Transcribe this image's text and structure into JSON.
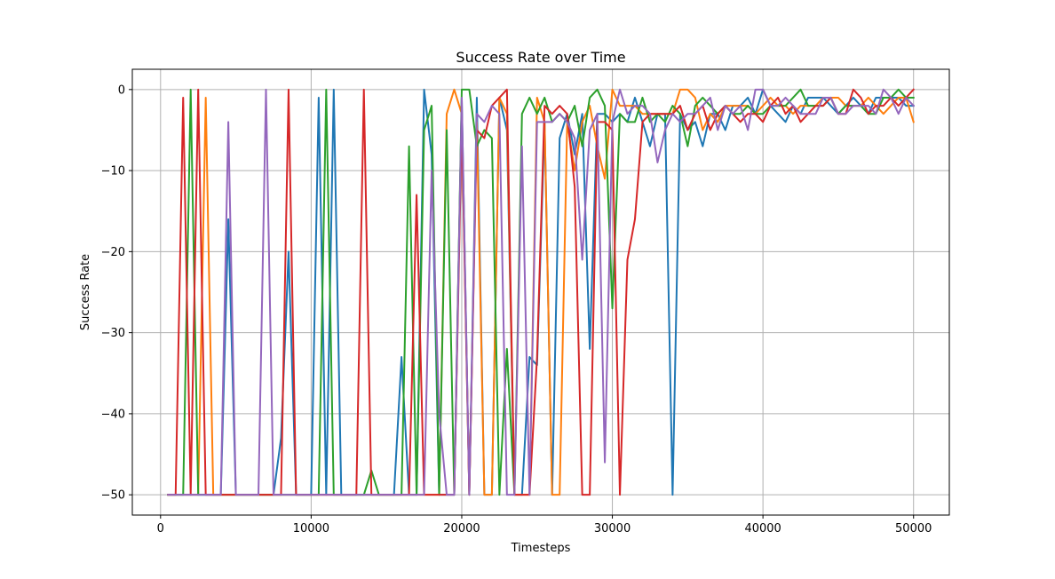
{
  "chart_data": {
    "type": "line",
    "title": "Success Rate over Time",
    "xlabel": "Timesteps",
    "ylabel": "Success Rate",
    "xlim": [
      -1875,
      52375
    ],
    "ylim": [
      -52.5,
      2.5
    ],
    "xticks": [
      0,
      10000,
      20000,
      30000,
      40000,
      50000
    ],
    "xtick_labels": [
      "0",
      "10000",
      "20000",
      "30000",
      "40000",
      "50000"
    ],
    "yticks": [
      -50,
      -40,
      -30,
      -20,
      -10,
      0
    ],
    "ytick_labels": [
      "−50",
      "−40",
      "−30",
      "−20",
      "−10",
      "0"
    ],
    "grid": true,
    "series": [
      {
        "color": "#1f77b4",
        "x": [
          500,
          1500,
          4000,
          4500,
          5000,
          7500,
          8000,
          8500,
          9000,
          10000,
          10500,
          11000,
          11500,
          12000,
          15500,
          16000,
          16500,
          17000,
          17500,
          18000,
          18500,
          19000,
          19500,
          20000,
          20500,
          21000,
          21500,
          22000,
          22500,
          23000,
          23500,
          24000,
          24500,
          25000,
          25500,
          26000,
          26500,
          27000,
          27500,
          28000,
          28500,
          29000,
          29500,
          30000,
          30500,
          31000,
          31500,
          32000,
          32500,
          33000,
          33500,
          34000,
          34500,
          35000,
          35500,
          36000,
          36500,
          37000,
          37500,
          38000,
          38500,
          39000,
          39500,
          40000,
          40500,
          41000,
          41500,
          42000,
          42500,
          43000,
          43500,
          44000,
          44500,
          45000,
          45500,
          46000,
          46500,
          47000,
          47500,
          48000,
          48500,
          49000,
          49500,
          50000
        ],
        "y": [
          -50,
          -50,
          -50,
          -16,
          -50,
          -50,
          -43,
          -20,
          -50,
          -50,
          -1,
          -50,
          0,
          -50,
          -50,
          -33,
          -50,
          -50,
          0,
          -8,
          -50,
          -50,
          -50,
          -1,
          -50,
          -1,
          -50,
          -50,
          -1,
          -5,
          -50,
          -50,
          -33,
          -34,
          -4,
          -50,
          -6,
          -3,
          -8,
          -3,
          -32,
          -3,
          -3,
          -4,
          -3,
          -4,
          -1,
          -4,
          -7,
          -3,
          -3,
          -50,
          -3,
          -5,
          -4,
          -7,
          -3,
          -3,
          -5,
          -2,
          -2,
          -1,
          -3,
          0,
          -2,
          -3,
          -4,
          -2,
          -3,
          -1,
          -1,
          -1,
          -2,
          -3,
          -2,
          -1,
          -2,
          -3,
          -1,
          -1,
          -1,
          -1,
          -2,
          -2
        ]
      },
      {
        "color": "#ff7f0e",
        "x": [
          500,
          2500,
          3000,
          3500,
          15500,
          16500,
          17500,
          18000,
          18500,
          19000,
          19500,
          20000,
          20500,
          21000,
          21500,
          22000,
          22500,
          23000,
          23500,
          24000,
          24500,
          25000,
          25500,
          26000,
          26500,
          27000,
          27500,
          28000,
          28500,
          29000,
          29500,
          30000,
          30500,
          31000,
          31500,
          32000,
          32500,
          33000,
          33500,
          34000,
          34500,
          35000,
          35500,
          36000,
          36500,
          37000,
          37500,
          38000,
          38500,
          39000,
          39500,
          40000,
          40500,
          41000,
          41500,
          42000,
          42500,
          43000,
          43500,
          44000,
          44500,
          45000,
          45500,
          46000,
          46500,
          47000,
          47500,
          48000,
          48500,
          49000,
          49500,
          50000
        ],
        "y": [
          -50,
          -50,
          -1,
          -50,
          -50,
          -50,
          -50,
          -50,
          -50,
          -3,
          0,
          -3,
          -50,
          -4,
          -50,
          -50,
          -1,
          -3,
          -50,
          -50,
          -50,
          -1,
          -4,
          -50,
          -50,
          -4,
          -10,
          -4,
          -2,
          -7,
          -11,
          0,
          -2,
          -2,
          -2,
          -3,
          -3,
          -3,
          -3,
          -3,
          0,
          0,
          -1,
          -5,
          -3,
          -4,
          -2,
          -2,
          -2,
          -2,
          -3,
          -2,
          -1,
          -2,
          -2,
          -3,
          -2,
          -2,
          -2,
          -1,
          -1,
          -1,
          -2,
          -2,
          -2,
          -1,
          -2,
          -3,
          -2,
          -1,
          -1,
          -4
        ]
      },
      {
        "color": "#2ca02c",
        "x": [
          500,
          1500,
          2000,
          2500,
          10500,
          11000,
          11500,
          13500,
          14000,
          14500,
          15500,
          16000,
          16500,
          17000,
          17500,
          18000,
          18500,
          19000,
          19500,
          20000,
          20500,
          21000,
          21500,
          22000,
          22500,
          23000,
          23500,
          24000,
          24500,
          25000,
          25500,
          26000,
          26500,
          27000,
          27500,
          28000,
          28500,
          29000,
          29500,
          30000,
          30500,
          31000,
          31500,
          32000,
          32500,
          33000,
          33500,
          34000,
          34500,
          35000,
          35500,
          36000,
          36500,
          37000,
          37500,
          38000,
          38500,
          39000,
          39500,
          40000,
          40500,
          41000,
          41500,
          42000,
          42500,
          43000,
          43500,
          44000,
          44500,
          45000,
          45500,
          46000,
          46500,
          47000,
          47500,
          48000,
          48500,
          49000,
          49500,
          50000
        ],
        "y": [
          -50,
          -50,
          0,
          -50,
          -50,
          0,
          -50,
          -50,
          -47,
          -50,
          -50,
          -50,
          -7,
          -50,
          -5,
          -2,
          -50,
          -5,
          -50,
          0,
          0,
          -7,
          -5,
          -6,
          -50,
          -32,
          -50,
          -3,
          -1,
          -3,
          -1,
          -4,
          -3,
          -4,
          -2,
          -7,
          -1,
          0,
          -2,
          -27,
          -3,
          -4,
          -4,
          -1,
          -4,
          -3,
          -4,
          -2,
          -3,
          -7,
          -2,
          -1,
          -2,
          -3,
          -2,
          -3,
          -3,
          -2,
          -3,
          -3,
          -2,
          -2,
          -2,
          -1,
          0,
          -2,
          -2,
          -2,
          -1,
          -3,
          -2,
          -2,
          -2,
          -3,
          -3,
          -1,
          -1,
          0,
          -1,
          -1
        ]
      },
      {
        "color": "#d62728",
        "x": [
          500,
          1000,
          1500,
          2000,
          2500,
          3000,
          8000,
          8500,
          9000,
          13000,
          13500,
          14000,
          16500,
          17000,
          17500,
          19500,
          20000,
          20500,
          21000,
          21500,
          22000,
          22500,
          23000,
          23500,
          24000,
          24500,
          25000,
          25500,
          26000,
          26500,
          27000,
          27500,
          28000,
          28500,
          29000,
          29500,
          30000,
          30500,
          31000,
          31500,
          32000,
          32500,
          33000,
          33500,
          34000,
          34500,
          35000,
          35500,
          36000,
          36500,
          37000,
          37500,
          38000,
          38500,
          39000,
          39500,
          40000,
          40500,
          41000,
          41500,
          42000,
          42500,
          43000,
          43500,
          44000,
          44500,
          45000,
          45500,
          46000,
          46500,
          47000,
          47500,
          48000,
          48500,
          49000,
          49500,
          50000
        ],
        "y": [
          -50,
          -50,
          -1,
          -50,
          0,
          -50,
          -50,
          0,
          -50,
          -50,
          0,
          -50,
          -50,
          -13,
          -50,
          -50,
          -4,
          -50,
          -5,
          -6,
          -2,
          -1,
          0,
          -50,
          -50,
          -50,
          -33,
          -2,
          -3,
          -2,
          -3,
          -12,
          -50,
          -50,
          -4,
          -4,
          -5,
          -50,
          -21,
          -16,
          -4,
          -3,
          -3,
          -3,
          -3,
          -2,
          -5,
          -3,
          -2,
          -5,
          -3,
          -2,
          -3,
          -4,
          -3,
          -3,
          -4,
          -2,
          -1,
          -3,
          -2,
          -4,
          -3,
          -2,
          -2,
          -1,
          -3,
          -3,
          0,
          -1,
          -3,
          -2,
          -2,
          -1,
          -2,
          -1,
          0
        ]
      },
      {
        "color": "#9467bd",
        "x": [
          500,
          4000,
          4500,
          5000,
          6500,
          7000,
          7500,
          17500,
          18000,
          18500,
          19000,
          19500,
          20000,
          20500,
          21000,
          21500,
          22000,
          22500,
          23000,
          23500,
          24000,
          24500,
          25000,
          25500,
          26000,
          26500,
          27000,
          27500,
          28000,
          28500,
          29000,
          29500,
          30000,
          30500,
          31000,
          31500,
          32000,
          32500,
          33000,
          33500,
          34000,
          34500,
          35000,
          35500,
          36000,
          36500,
          37000,
          37500,
          38000,
          38500,
          39000,
          39500,
          40000,
          40500,
          41000,
          41500,
          42000,
          42500,
          43000,
          43500,
          44000,
          44500,
          45000,
          45500,
          46000,
          46500,
          47000,
          47500,
          48000,
          48500,
          49000,
          49500,
          50000
        ],
        "y": [
          -50,
          -50,
          -4,
          -50,
          -50,
          0,
          -50,
          -50,
          -10,
          -40,
          -50,
          -50,
          -1,
          -50,
          -3,
          -4,
          -2,
          -3,
          -50,
          -50,
          -7,
          -50,
          -4,
          -4,
          -4,
          -3,
          -4,
          -6,
          -21,
          -5,
          -3,
          -46,
          -4,
          0,
          -3,
          -2,
          -2,
          -3,
          -9,
          -5,
          -3,
          -4,
          -3,
          -3,
          -2,
          -1,
          -5,
          -2,
          -3,
          -2,
          -5,
          0,
          0,
          -2,
          -2,
          -1,
          -2,
          -3,
          -3,
          -3,
          -1,
          -1,
          -3,
          -3,
          -2,
          -2,
          -2,
          -3,
          0,
          -1,
          -3,
          -1,
          -2
        ]
      }
    ]
  }
}
